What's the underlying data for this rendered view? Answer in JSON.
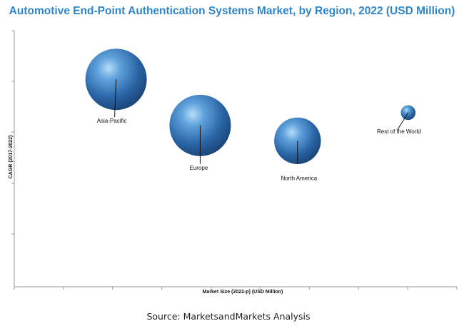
{
  "chart_data": {
    "type": "bubble",
    "title": "Automotive End-Point Authentication Systems Market, by Region, 2022 (USD Million)",
    "xlabel": "Market Size (2022-p) (USD Million)",
    "ylabel": "CAGR (2017-2022)",
    "source": "Source: MarketsandMarkets Analysis",
    "grid": false,
    "legend": "none",
    "xlim": [
      0,
      1
    ],
    "ylim": [
      0,
      1
    ],
    "series": [
      {
        "name": "Asia-Pacific",
        "x": 0.23,
        "y": 0.81,
        "size": 1.0,
        "color": "#2f6fb3"
      },
      {
        "name": "Europe",
        "x": 0.42,
        "y": 0.63,
        "size": 1.0,
        "color": "#2f6fb3"
      },
      {
        "name": "North America",
        "x": 0.64,
        "y": 0.57,
        "size": 0.76,
        "color": "#2f6fb3"
      },
      {
        "name": "Rest of the World",
        "x": 0.89,
        "y": 0.68,
        "size": 0.24,
        "color": "#2f6fb3"
      }
    ]
  }
}
